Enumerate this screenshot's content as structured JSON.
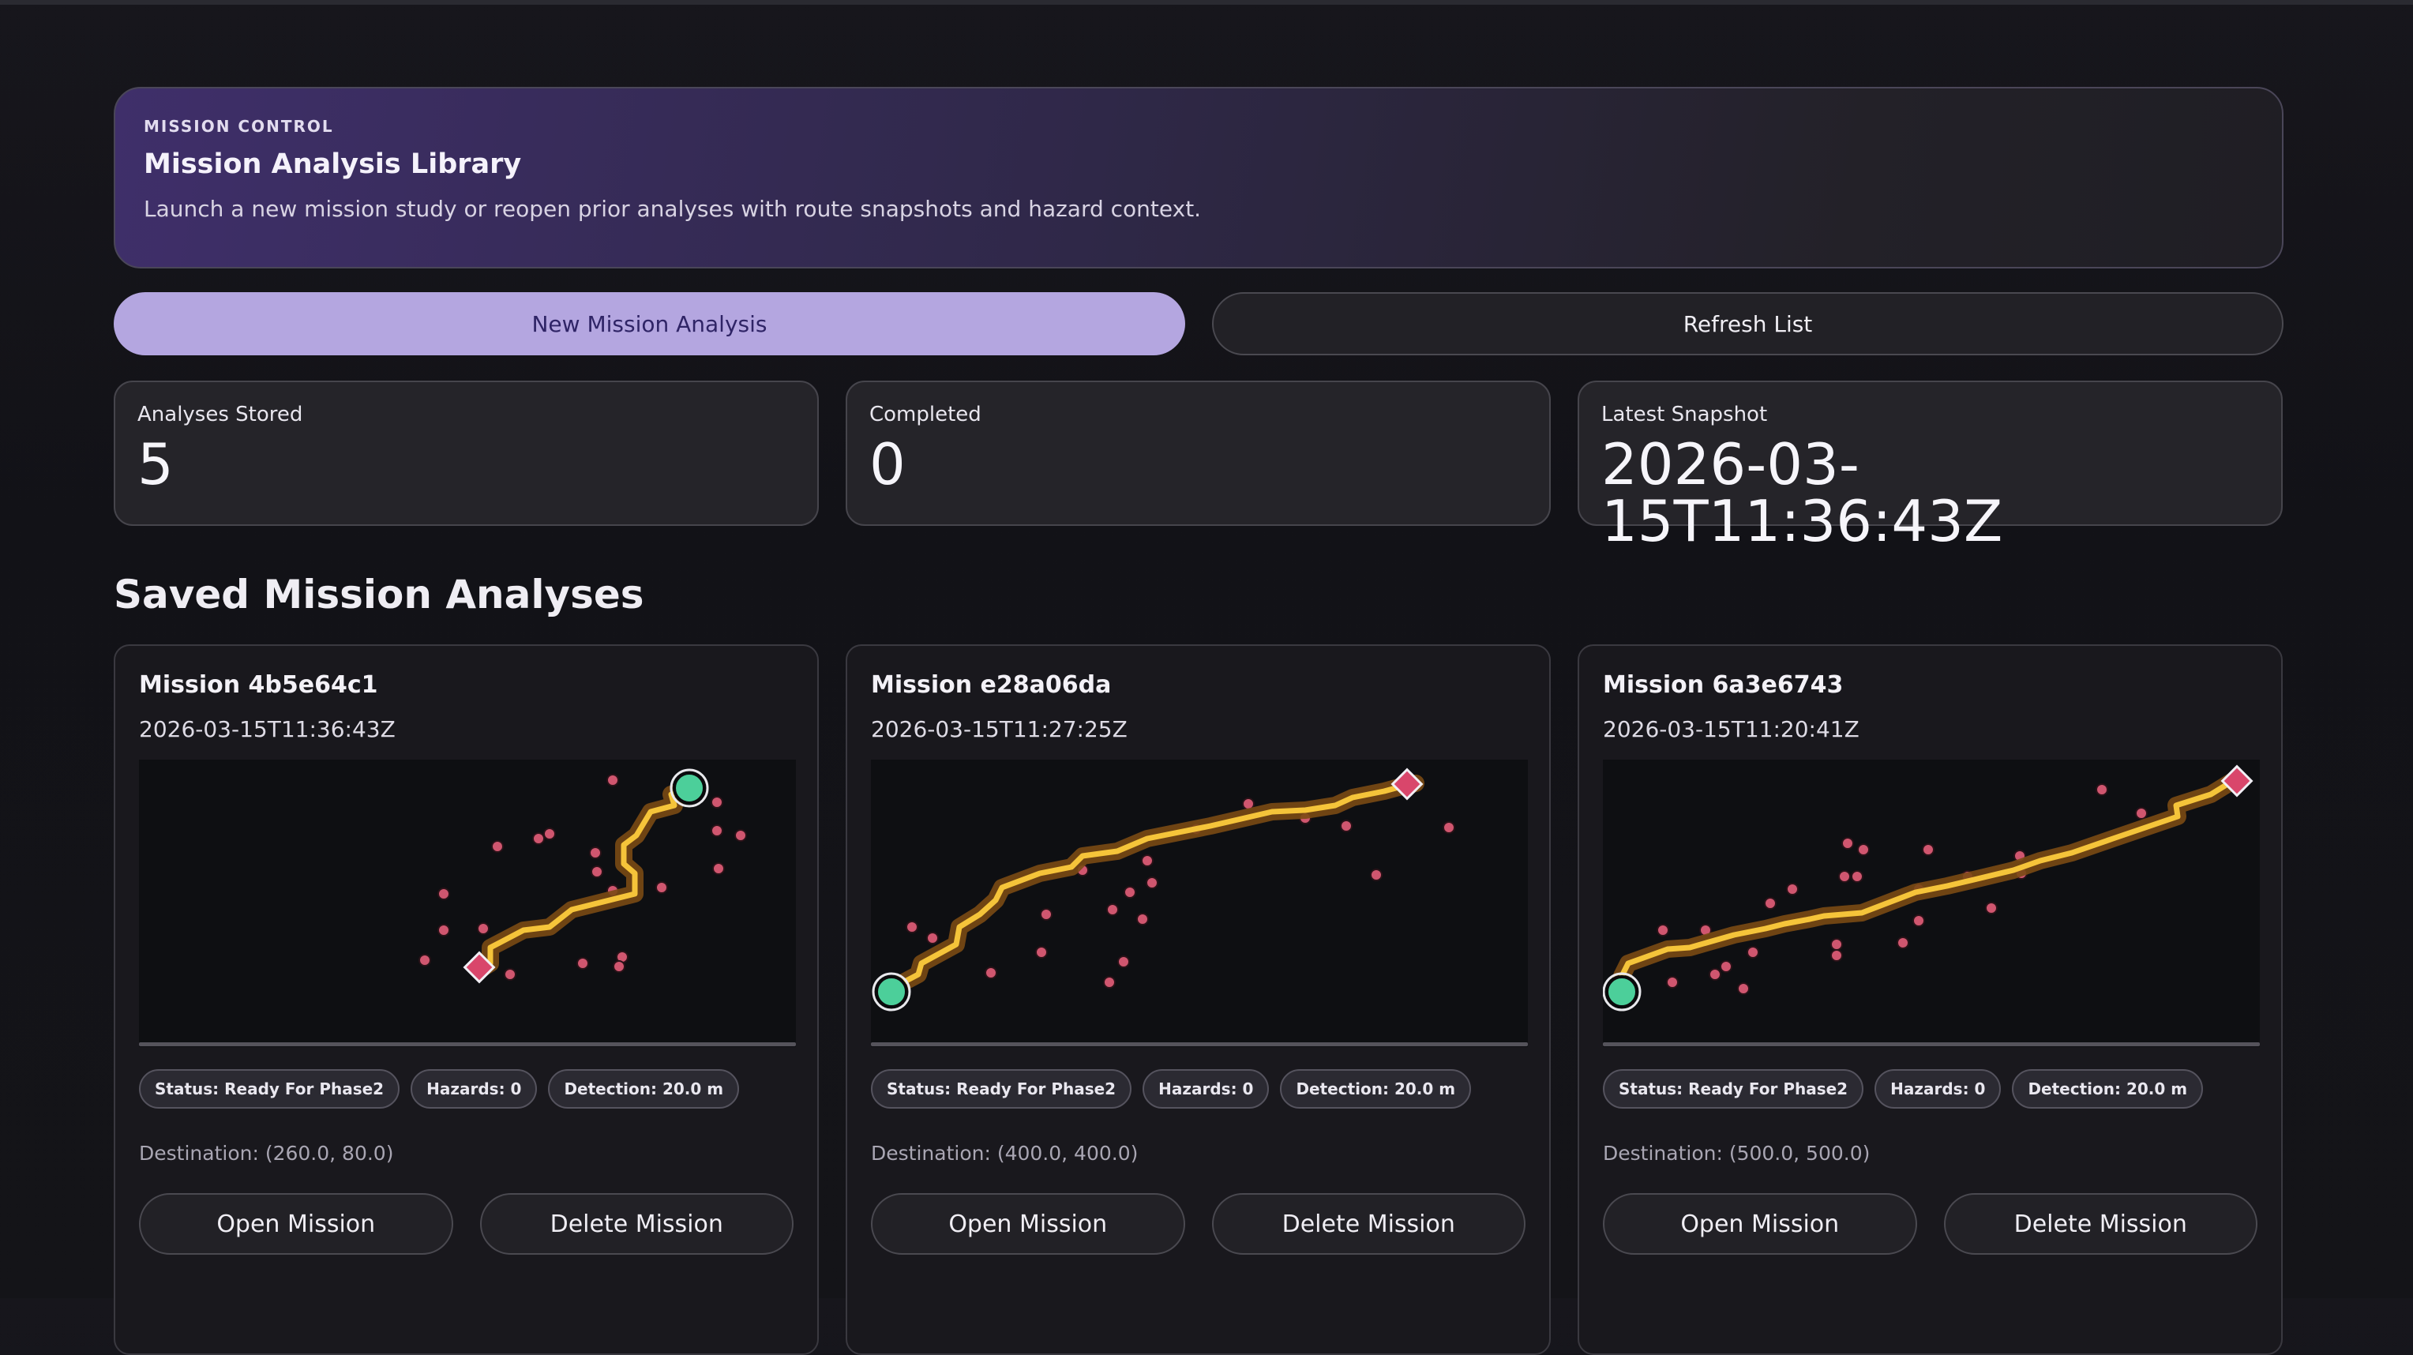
{
  "header": {
    "eyebrow": "MISSION CONTROL",
    "title": "Mission Analysis Library",
    "subtitle": "Launch a new mission study or reopen prior analyses with route snapshots and hazard context."
  },
  "actions": {
    "new_label": "New Mission Analysis",
    "refresh_label": "Refresh List"
  },
  "stats": [
    {
      "label": "Analyses Stored",
      "value": "5"
    },
    {
      "label": "Completed",
      "value": "0"
    },
    {
      "label": "Latest Snapshot",
      "value": "2026-03-15T11:36:43Z"
    }
  ],
  "section_title": "Saved Mission Analyses",
  "colors": {
    "route": "#f5c43a",
    "route_glow": "#7a4a14",
    "start_marker": "#4ccf9a",
    "destination_marker": "#d9466b",
    "hazard_dot": "#d0566f",
    "primary_button": "#b4a6e0"
  },
  "cards": [
    {
      "title": "Mission 4b5e64c1",
      "timestamp": "2026-03-15T11:36:43Z",
      "badges": {
        "status": "Status: Ready For Phase2",
        "hazards": "Hazards: 0",
        "detection": "Detection: 20.0 m"
      },
      "destination": "Destination: (260.0, 80.0)",
      "open_label": "Open Mission",
      "delete_label": "Delete Mission"
    },
    {
      "title": "Mission e28a06da",
      "timestamp": "2026-03-15T11:27:25Z",
      "badges": {
        "status": "Status: Ready For Phase2",
        "hazards": "Hazards: 0",
        "detection": "Detection: 20.0 m"
      },
      "destination": "Destination: (400.0, 400.0)",
      "open_label": "Open Mission",
      "delete_label": "Delete Mission"
    },
    {
      "title": "Mission 6a3e6743",
      "timestamp": "2026-03-15T11:20:41Z",
      "badges": {
        "status": "Status: Ready For Phase2",
        "hazards": "Hazards: 0",
        "detection": "Detection: 20.0 m"
      },
      "destination": "Destination: (500.0, 500.0)",
      "open_label": "Open Mission",
      "delete_label": "Delete Mission"
    }
  ]
}
